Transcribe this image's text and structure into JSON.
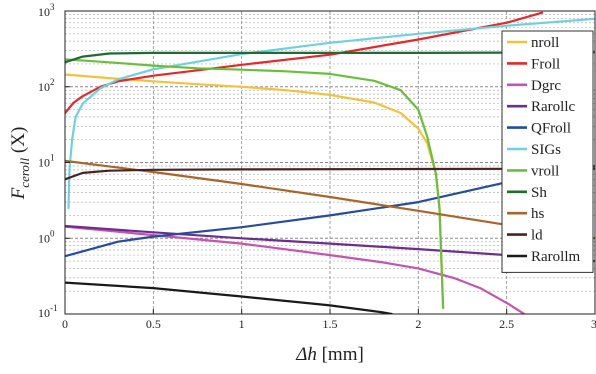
{
  "chart_data": {
    "type": "line",
    "x_label_main": "Δh",
    "x_label_unit": " [mm]",
    "y_label_main": "F",
    "y_label_sub": "ceroll",
    "y_label_suffix": " (X)",
    "xlim": [
      0,
      3
    ],
    "ylim": [
      0.1,
      1000
    ],
    "yscale": "log",
    "grid": true,
    "legend_position": "right",
    "x_ticks": [
      {
        "v": 0,
        "label": "0"
      },
      {
        "v": 0.5,
        "label": "0.5"
      },
      {
        "v": 1,
        "label": "1"
      },
      {
        "v": 1.5,
        "label": "1.5"
      },
      {
        "v": 2,
        "label": "2"
      },
      {
        "v": 2.5,
        "label": "2.5"
      },
      {
        "v": 3,
        "label": "3"
      }
    ],
    "y_ticks": [
      {
        "exp": -1,
        "base": "10",
        "sup": "-1"
      },
      {
        "exp": 0,
        "base": "10",
        "sup": "0"
      },
      {
        "exp": 1,
        "base": "10",
        "sup": "1"
      },
      {
        "exp": 2,
        "base": "10",
        "sup": "2"
      },
      {
        "exp": 3,
        "base": "10",
        "sup": "3"
      }
    ],
    "series": [
      {
        "name": "nroll",
        "color": "#f2c23c",
        "x": [
          0,
          0.25,
          0.5,
          0.75,
          1.0,
          1.25,
          1.5,
          1.75,
          1.9,
          2.0,
          2.05,
          2.1,
          2.12,
          2.14
        ],
        "y": [
          145,
          130,
          118,
          108,
          100,
          90,
          78,
          62,
          45,
          28,
          18,
          7,
          2.5,
          0.12
        ]
      },
      {
        "name": "Froll",
        "color": "#e5282a",
        "x": [
          0,
          0.05,
          0.1,
          0.2,
          0.3,
          0.5,
          0.75,
          1.0,
          1.5,
          2.0,
          2.5,
          2.7
        ],
        "y": [
          45,
          62,
          75,
          100,
          118,
          140,
          165,
          195,
          265,
          420,
          700,
          950
        ]
      },
      {
        "name": "Dgrc",
        "color": "#c454ad",
        "x": [
          0,
          0.5,
          1.0,
          1.5,
          1.8,
          2.0,
          2.2,
          2.35,
          2.5,
          2.6
        ],
        "y": [
          1.42,
          1.1,
          0.85,
          0.6,
          0.48,
          0.4,
          0.3,
          0.22,
          0.14,
          0.1
        ]
      },
      {
        "name": "Rarollc",
        "color": "#6b2f8e",
        "x": [
          0,
          0.5,
          1.0,
          1.5,
          2.0,
          2.5,
          3.0
        ],
        "y": [
          1.45,
          1.2,
          1.0,
          0.85,
          0.72,
          0.6,
          0.5
        ]
      },
      {
        "name": "QFroll",
        "color": "#284c9c",
        "x": [
          0,
          0.3,
          0.5,
          1.0,
          1.5,
          2.0,
          2.5,
          3.0
        ],
        "y": [
          0.58,
          0.9,
          1.05,
          1.4,
          2.0,
          3.0,
          5.5,
          9.0
        ]
      },
      {
        "name": "SIGs",
        "color": "#6fd1dd",
        "x": [
          0.02,
          0.025,
          0.04,
          0.06,
          0.1,
          0.2,
          0.3,
          0.5,
          1.0,
          1.5,
          2.0,
          2.5,
          3.0
        ],
        "y": [
          2.5,
          8,
          20,
          40,
          60,
          95,
          125,
          170,
          270,
          380,
          500,
          640,
          790
        ]
      },
      {
        "name": "vroll",
        "color": "#6abf3a",
        "x": [
          0,
          0.25,
          0.5,
          0.75,
          1.0,
          1.25,
          1.5,
          1.75,
          1.9,
          2.0,
          2.05,
          2.1,
          2.12,
          2.14
        ],
        "y": [
          230,
          210,
          190,
          175,
          168,
          160,
          148,
          120,
          90,
          50,
          22,
          7,
          2.5,
          0.12
        ]
      },
      {
        "name": "Sh",
        "color": "#1f6b32",
        "x": [
          0,
          0.1,
          0.25,
          0.5,
          1.0,
          1.5,
          2.0,
          2.5,
          3.0
        ],
        "y": [
          210,
          250,
          275,
          280,
          280,
          280,
          280,
          282,
          285
        ]
      },
      {
        "name": "hs",
        "color": "#a8672a",
        "x": [
          0,
          0.5,
          1.0,
          1.5,
          2.0,
          2.5,
          3.0
        ],
        "y": [
          10.5,
          7.5,
          5.2,
          3.5,
          2.3,
          1.5,
          1.0
        ]
      },
      {
        "name": "ld",
        "color": "#4a2424",
        "x": [
          0,
          0.1,
          0.25,
          0.5,
          1.0,
          2.0,
          3.0
        ],
        "y": [
          6.0,
          7.3,
          7.8,
          8.0,
          8.1,
          8.2,
          8.3
        ]
      },
      {
        "name": "Rarollm",
        "color": "#1a1a1a",
        "x": [
          0,
          0.5,
          1.0,
          1.5,
          1.8,
          1.85
        ],
        "y": [
          0.26,
          0.22,
          0.17,
          0.13,
          0.105,
          0.1
        ]
      }
    ]
  }
}
